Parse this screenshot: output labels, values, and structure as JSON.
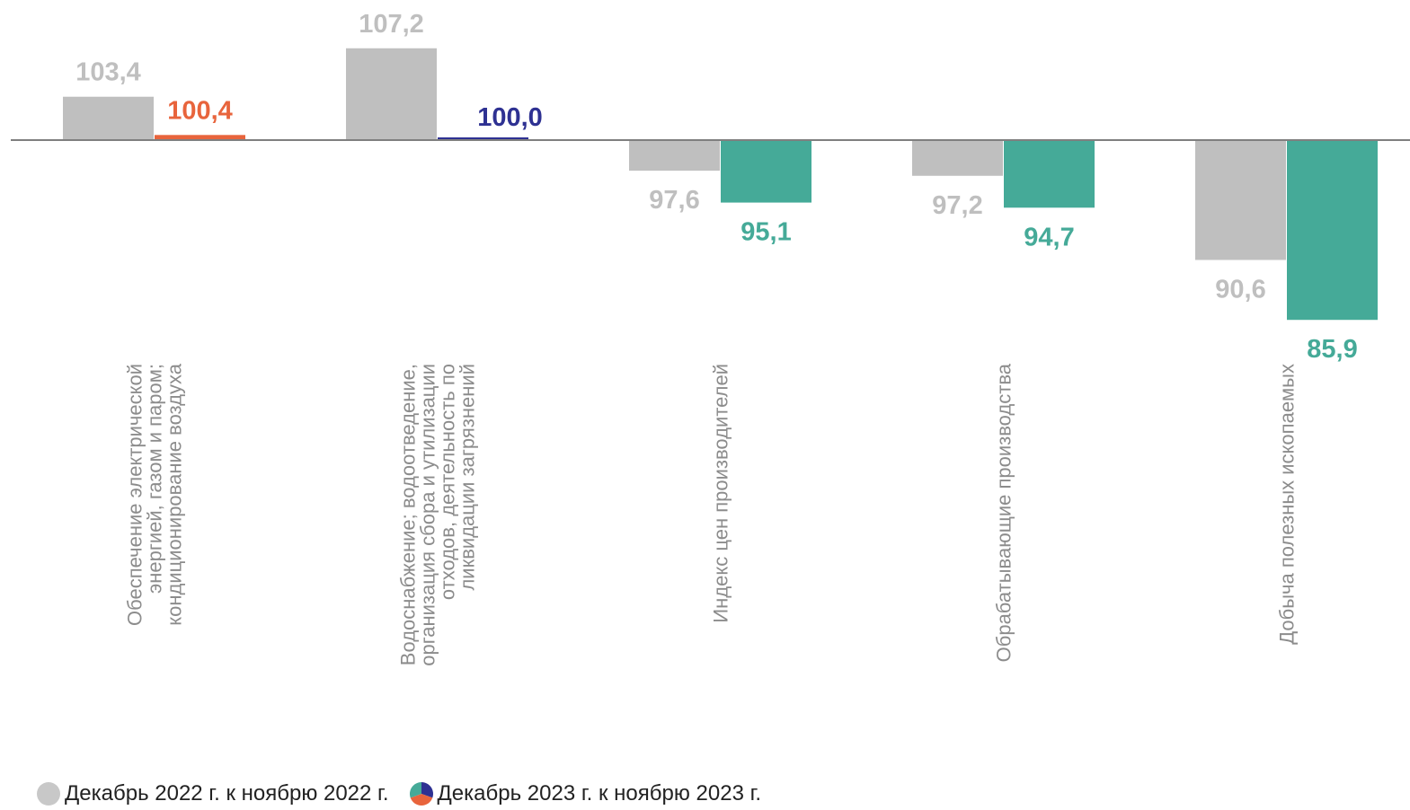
{
  "chart_data": {
    "type": "bar",
    "orientation": "vertical",
    "baseline": 100,
    "categories": [
      "Обеспечение электрической энергией, газом и паром; кондиционирование воздуха",
      "Водоснабжение; водоотведение, организация сбора и утилизации отходов, деятельность по ликвидации загрязнений",
      "Индекс цен производителей",
      "Обрабатывающие производства",
      "Добыча полезных ископаемых"
    ],
    "category_lines": [
      [
        "Обеспечение электрической",
        "энергией, газом и паром;",
        "кондиционирование воздуха"
      ],
      [
        "Водоснабжение; водоотведение,",
        "организация сбора и утилизации",
        "отходов, деятельность по",
        "ликвидации загрязнений"
      ],
      [
        "Индекс цен производителей"
      ],
      [
        "Обрабатывающие производства"
      ],
      [
        "Добыча полезных ископаемых"
      ]
    ],
    "series": [
      {
        "name": "Декабрь 2022 г. к ноябрю 2022 г.",
        "values": [
          103.4,
          107.2,
          97.6,
          97.2,
          90.6
        ],
        "labels": [
          "103,4",
          "107,2",
          "97,6",
          "97,2",
          "90,6"
        ],
        "colors": [
          "#bfbfbf",
          "#bfbfbf",
          "#bfbfbf",
          "#bfbfbf",
          "#bfbfbf"
        ],
        "label_colors": [
          "#bfbfbf",
          "#bfbfbf",
          "#bfbfbf",
          "#bfbfbf",
          "#bfbfbf"
        ]
      },
      {
        "name": "Декабрь 2023 г. к ноябрю 2023 г.",
        "values": [
          100.4,
          100.0,
          95.1,
          94.7,
          85.9
        ],
        "labels": [
          "100,4",
          "100,0",
          "95,1",
          "94,7",
          "85,9"
        ],
        "colors": [
          "#e8643c",
          "#2e3192",
          "#45aa98",
          "#45aa98",
          "#45aa98"
        ],
        "label_colors": [
          "#e8643c",
          "#2e3192",
          "#45aa98",
          "#45aa98",
          "#45aa98"
        ]
      }
    ],
    "legend": {
      "position": "bottom-left",
      "markers": [
        {
          "type": "solid",
          "color": "#c8c8c8"
        },
        {
          "type": "pie",
          "colors": [
            "#2e3192",
            "#45aa98",
            "#e8643c"
          ]
        }
      ]
    },
    "axis_line_color": "#7f7f7f",
    "grid": false
  }
}
